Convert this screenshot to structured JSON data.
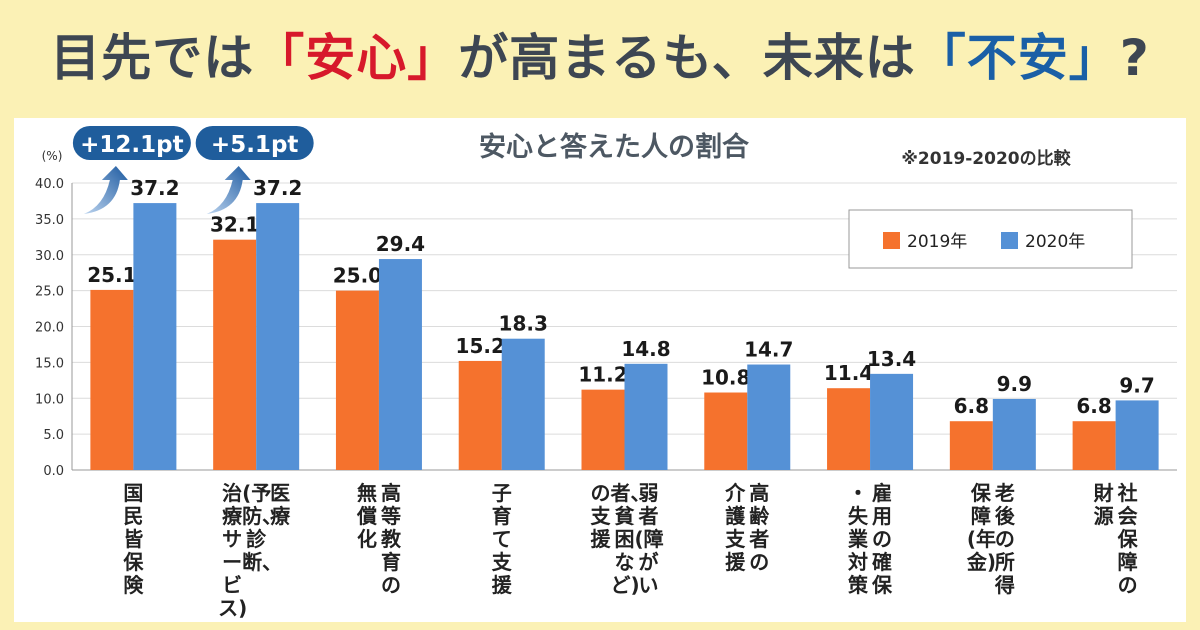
{
  "headline": {
    "part1": "目先では",
    "anshin": "「安心」",
    "part2": "が高まるも、未来は",
    "fuan": "「不安」",
    "part3": "?"
  },
  "chart_data": {
    "type": "bar",
    "title": "安心と答えた人の割合",
    "note": "※2019-2020の比較",
    "unit": "(%)",
    "ylim": [
      0,
      40
    ],
    "yticks": [
      "0.0",
      "5.0",
      "10.0",
      "15.0",
      "20.0",
      "25.0",
      "30.0",
      "35.0",
      "40.0"
    ],
    "grid": true,
    "legend_position": "top-right",
    "categories": [
      [
        "国民皆保険"
      ],
      [
        "医療",
        "(予防、診断、",
        "治療サービス)"
      ],
      [
        "高等教育の",
        "無償化"
      ],
      [
        "子育て支援"
      ],
      [
        "弱者(障がい",
        "者、貧困など)",
        "の支援"
      ],
      [
        "高齢者の",
        "介護支援"
      ],
      [
        "雇用の確保",
        "・失業対策"
      ],
      [
        "老後の所得",
        "保障(年金)"
      ],
      [
        "社会保障の",
        "財源"
      ]
    ],
    "series": [
      {
        "name": "2019年",
        "color": "#f5722d",
        "values": [
          25.1,
          32.1,
          25.0,
          15.2,
          11.2,
          10.8,
          11.4,
          6.8,
          6.8
        ]
      },
      {
        "name": "2020年",
        "color": "#5591d6",
        "values": [
          37.2,
          37.2,
          29.4,
          18.3,
          14.8,
          14.7,
          13.4,
          9.9,
          9.7
        ]
      }
    ],
    "callouts": [
      {
        "text": "+12.1pt",
        "category_index": 0
      },
      {
        "text": "+5.1pt",
        "category_index": 1
      }
    ]
  }
}
